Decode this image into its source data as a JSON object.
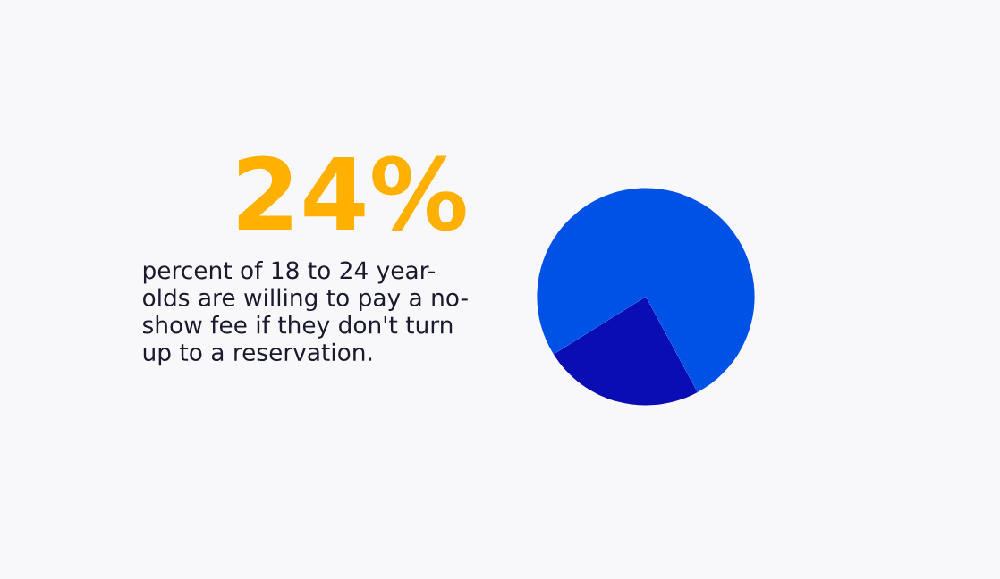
{
  "chart_data": {
    "type": "pie",
    "title": "24%",
    "subtitle": "percent of 18 to 24 year-\nolds are willing to pay a no-\nshow fee if they don't turn\nup to a reservation.",
    "categories": [
      null,
      null
    ],
    "values": [
      24,
      76
    ],
    "colors": [
      "#0a0db3",
      "#0052e6"
    ]
  }
}
